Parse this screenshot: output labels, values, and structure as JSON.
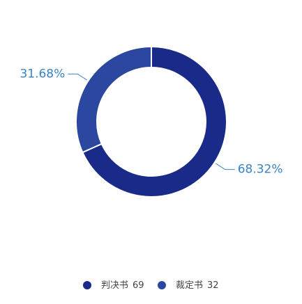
{
  "chart_data": {
    "type": "donut",
    "categories": [
      "判决书",
      "裁定书"
    ],
    "values": [
      69,
      32
    ],
    "percents": [
      68.32,
      31.68
    ],
    "value_labels": [
      "68.32%",
      "31.68%"
    ],
    "colors": [
      "#1a2a88",
      "#2b479f"
    ],
    "legend": "bottom"
  }
}
